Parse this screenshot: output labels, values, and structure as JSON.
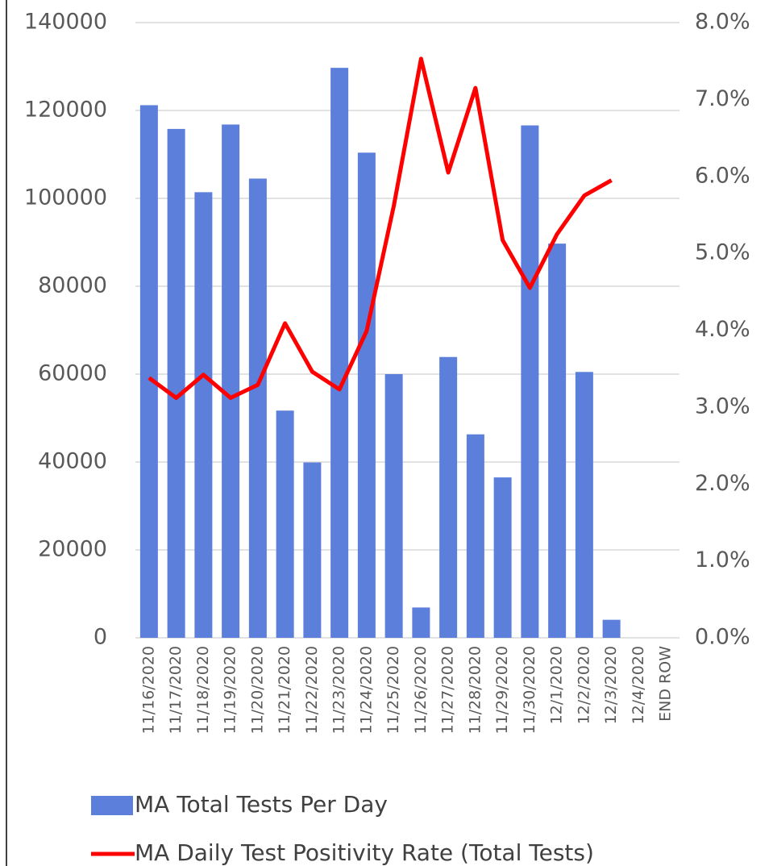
{
  "chart_data": {
    "type": "bar-line",
    "categories": [
      "11/16/2020",
      "11/17/2020",
      "11/18/2020",
      "11/19/2020",
      "11/20/2020",
      "11/21/2020",
      "11/22/2020",
      "11/23/2020",
      "11/24/2020",
      "11/25/2020",
      "11/26/2020",
      "11/27/2020",
      "11/28/2020",
      "11/29/2020",
      "11/30/2020",
      "12/1/2020",
      "12/2/2020",
      "12/3/2020",
      "12/4/2020",
      "END ROW"
    ],
    "series": [
      {
        "name": "MA Total Tests Per Day",
        "type": "bar",
        "color": "#5b7fdb",
        "values": [
          121200,
          115800,
          101400,
          116800,
          104500,
          51700,
          39900,
          129700,
          110400,
          60000,
          6900,
          63900,
          46300,
          36500,
          116600,
          89700,
          60500,
          4100,
          null,
          null
        ]
      },
      {
        "name": "MA Daily Test Positivity Rate (Total Tests)",
        "type": "line",
        "axis": "y2",
        "color": "#ff0000",
        "values": [
          3.38,
          3.12,
          3.42,
          3.12,
          3.29,
          4.09,
          3.46,
          3.23,
          3.99,
          5.62,
          7.53,
          6.05,
          7.15,
          5.17,
          4.55,
          5.25,
          5.75,
          5.95,
          null,
          null
        ]
      }
    ],
    "ylim": [
      0,
      140000
    ],
    "yticks": [
      0,
      20000,
      40000,
      60000,
      80000,
      100000,
      120000,
      140000
    ],
    "y2lim": [
      0,
      8
    ],
    "y2ticks": [
      {
        "value": 0,
        "label": "0.0%"
      },
      {
        "value": 1,
        "label": "1.0%"
      },
      {
        "value": 2,
        "label": "2.0%"
      },
      {
        "value": 3,
        "label": "3.0%"
      },
      {
        "value": 4,
        "label": "4.0%"
      },
      {
        "value": 5,
        "label": "5.0%"
      },
      {
        "value": 6,
        "label": "6.0%"
      },
      {
        "value": 7,
        "label": "7.0%"
      },
      {
        "value": 8,
        "label": "8.0%"
      }
    ],
    "grid": true,
    "legend": "bottom"
  }
}
